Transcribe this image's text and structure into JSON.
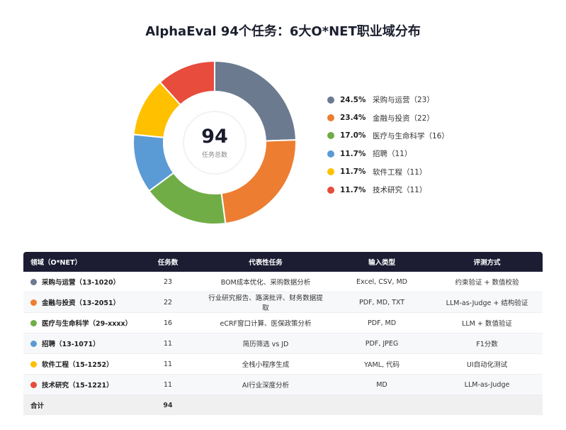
{
  "title": "AlphaEval 94个任务：6大O*NET职业域分布",
  "center": {
    "value": "94",
    "label": "任务总数"
  },
  "legend": [
    {
      "pct": "24.5%",
      "label": "采购与运营（23）",
      "color": "#6b7a8f"
    },
    {
      "pct": "23.4%",
      "label": "金融与投资（22）",
      "color": "#ed7d31"
    },
    {
      "pct": "17.0%",
      "label": "医疗与生命科学（16）",
      "color": "#70ad47"
    },
    {
      "pct": "11.7%",
      "label": "招聘（11）",
      "color": "#5b9bd5"
    },
    {
      "pct": "11.7%",
      "label": "软件工程（11）",
      "color": "#ffc000"
    },
    {
      "pct": "11.7%",
      "label": "技术研究（11）",
      "color": "#e74c3c"
    }
  ],
  "table": {
    "headers": [
      "领域（O*NET）",
      "任务数",
      "代表性任务",
      "输入类型",
      "评测方式"
    ],
    "rows": [
      {
        "domain": "采购与运营（13-1020）",
        "count": "23",
        "tasks": "BOM成本优化、采购数据分析",
        "input": "Excel, CSV, MD",
        "eval": "约束验证 + 数值校验",
        "color": "#6b7a8f"
      },
      {
        "domain": "金融与投资（13-2051）",
        "count": "22",
        "tasks": "行业研究报告、路演批评、财务数据提取",
        "input": "PDF, MD, TXT",
        "eval": "LLM-as-Judge + 结构验证",
        "color": "#ed7d31"
      },
      {
        "domain": "医疗与生命科学（29-xxxx）",
        "count": "16",
        "tasks": "eCRF窗口计算、医保政策分析",
        "input": "PDF, MD",
        "eval": "LLM + 数值验证",
        "color": "#70ad47"
      },
      {
        "domain": "招聘（13-1071）",
        "count": "11",
        "tasks": "简历筛选 vs JD",
        "input": "PDF, JPEG",
        "eval": "F1分数",
        "color": "#5b9bd5"
      },
      {
        "domain": "软件工程（15-1252）",
        "count": "11",
        "tasks": "全栈小程序生成",
        "input": "YAML, 代码",
        "eval": "UI自动化测试",
        "color": "#ffc000"
      },
      {
        "domain": "技术研究（15-1221）",
        "count": "11",
        "tasks": "AI行业深度分析",
        "input": "MD",
        "eval": "LLM-as-Judge",
        "color": "#e74c3c"
      }
    ],
    "total": {
      "label": "合计",
      "count": "94"
    }
  },
  "chart_data": {
    "type": "pie",
    "title": "AlphaEval 94个任务：6大O*NET职业域分布",
    "categories": [
      "采购与运营",
      "金融与投资",
      "医疗与生命科学",
      "招聘",
      "软件工程",
      "技术研究"
    ],
    "values": [
      23,
      22,
      16,
      11,
      11,
      11
    ],
    "percentages": [
      24.5,
      23.4,
      17.0,
      11.7,
      11.7,
      11.7
    ],
    "colors": [
      "#6b7a8f",
      "#ed7d31",
      "#70ad47",
      "#5b9bd5",
      "#ffc000",
      "#e74c3c"
    ],
    "donut": true,
    "center_text": "94 任务总数",
    "legend_position": "right"
  }
}
